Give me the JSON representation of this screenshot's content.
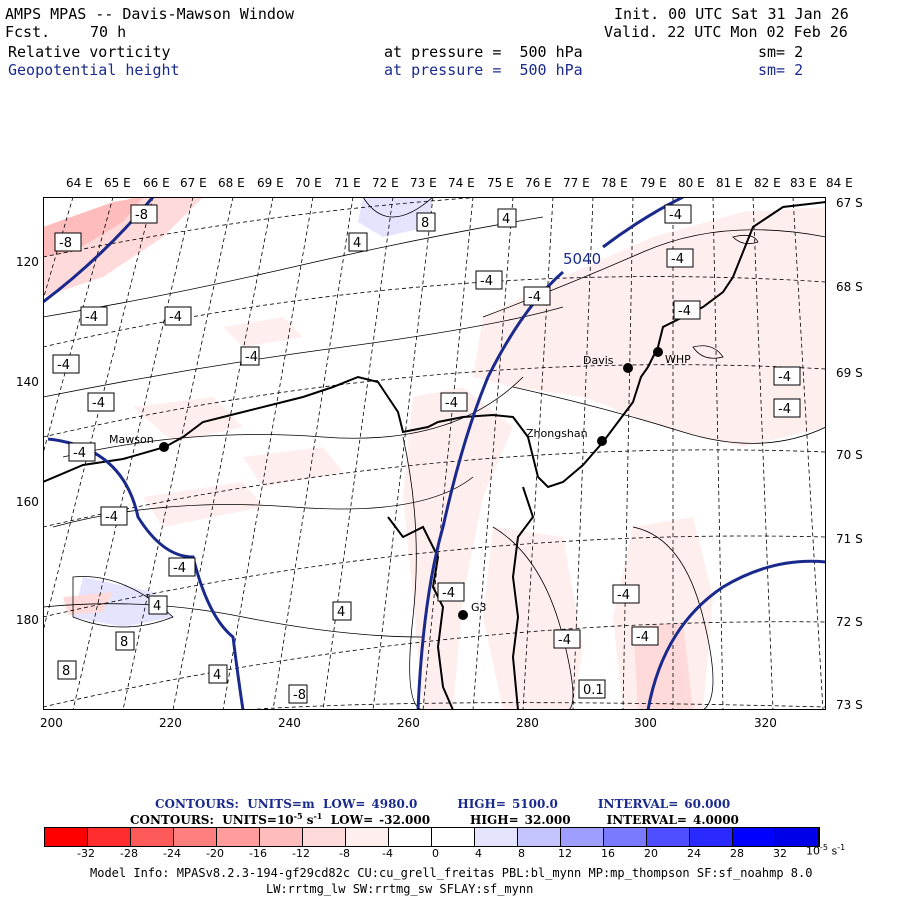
{
  "header": {
    "title": "AMPS MPAS -- Davis-Mawson Window",
    "fcst_label": "Fcst.",
    "fcst_value": "70 h",
    "init": "Init. 00 UTC Sat 31 Jan 26",
    "valid": "Valid. 22 UTC Mon 02 Feb 26",
    "field1": {
      "name": "Relative vorticity",
      "level": "at pressure =  500 hPa",
      "smooth": "sm= 2"
    },
    "field2": {
      "name": "Geopotential height",
      "level": "at pressure =  500 hPa",
      "smooth": "sm= 2"
    }
  },
  "map": {
    "lon_labels": [
      "64 E",
      "65 E",
      "66 E",
      "67 E",
      "68 E",
      "69 E",
      "70 E",
      "71 E",
      "72 E",
      "73 E",
      "74 E",
      "75 E",
      "76 E",
      "77 E",
      "78 E",
      "79 E",
      "80 E",
      "81 E",
      "82 E",
      "83 E",
      "84 E"
    ],
    "lat_labels": [
      "67 S",
      "68 S",
      "69 S",
      "70 S",
      "71 S",
      "72 S",
      "73 S"
    ],
    "y_ticks": [
      "120",
      "140",
      "160",
      "180"
    ],
    "x_ticks": [
      "200",
      "220",
      "240",
      "260",
      "280",
      "300",
      "320"
    ],
    "stations": [
      {
        "name": "Mawson"
      },
      {
        "name": "Davis"
      },
      {
        "name": "WHP"
      },
      {
        "name": "Zhongshan"
      },
      {
        "name": "G3"
      }
    ],
    "height_label": "5040",
    "vort_labels": [
      "-8",
      "-8",
      "8",
      "4",
      "4",
      "-4",
      "-4",
      "-4",
      "-4",
      "-4",
      "-4",
      "-4",
      "-4",
      "-4",
      "-4",
      "-4",
      "-4",
      "-4",
      "-4",
      "-4",
      "-4",
      "-4",
      "-4",
      "4",
      "4",
      "8",
      "8",
      "4",
      "-8",
      "-4",
      "-4",
      "0.1"
    ]
  },
  "contour_info": {
    "line1_label": "CONTOURS:  UNITS=m  LOW=",
    "line1_low": "4980.0",
    "line1_high_label": "HIGH=",
    "line1_high": "5100.0",
    "line1_int_label": "INTERVAL=",
    "line1_int": "60.000",
    "line2_label": "CONTOURS:  UNITS=10",
    "line2_exp": "-5",
    "line2_unit": " s",
    "line2_unit_exp": "-1",
    "line2_low_label": "  LOW=",
    "line2_low": "-32.000",
    "line2_high_label": "HIGH=",
    "line2_high": "32.000",
    "line2_int_label": "INTERVAL=",
    "line2_int": "4.0000"
  },
  "colorbar": {
    "colors": [
      "#ff0000",
      "#ff2e2e",
      "#ff5a5a",
      "#ff7f7f",
      "#ff9c9c",
      "#ffbcbc",
      "#ffdada",
      "#ffeeee",
      "#ffffff",
      "#ffffff",
      "#e4e4ff",
      "#c4c4ff",
      "#9e9eff",
      "#7a7aff",
      "#4f4fff",
      "#2a2aff",
      "#0000ff",
      "#0000e8"
    ],
    "labels": [
      "-32",
      "-28",
      "-24",
      "-20",
      "-16",
      "-12",
      "-8",
      "-4",
      "0",
      "4",
      "8",
      "12",
      "16",
      "20",
      "24",
      "28",
      "32"
    ],
    "units_label": "10",
    "units_exp": "-5",
    "units_s": "s",
    "units_s_exp": "-1"
  },
  "footer": {
    "line1": "Model Info: MPASv8.2.3-194-gf29cd82c CU:cu_grell_freitas PBL:bl_mynn MP:mp_thompson SF:sf_noahmp 8.0",
    "line2": "LW:rrtmg_lw SW:rrtmg_sw SFLAY:sf_mynn"
  }
}
